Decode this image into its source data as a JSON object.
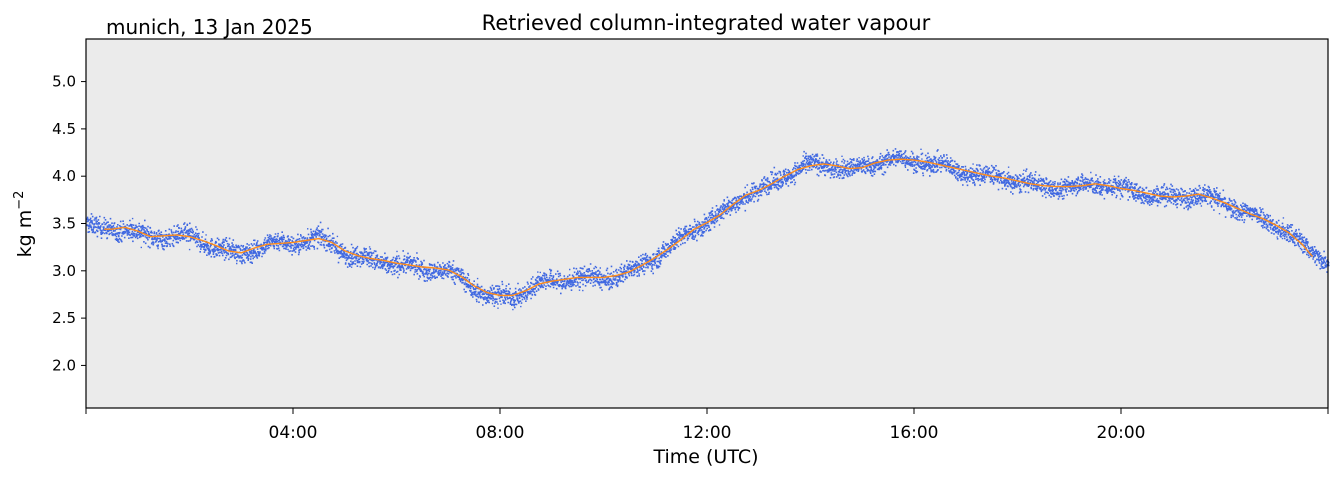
{
  "chart_data": {
    "type": "scatter",
    "title": "Retrieved column-integrated water vapour",
    "subtitle": "munich, 13 Jan 2025",
    "xlabel": "Time (UTC)",
    "ylabel_main": "kg m",
    "ylabel_sup": "−2",
    "x_unit": "hours UTC",
    "xlim": [
      0,
      24
    ],
    "ylim": [
      1.55,
      5.45
    ],
    "x_ticks": [
      0,
      4,
      8,
      12,
      16,
      20,
      24
    ],
    "x_tick_labels": [
      "",
      "04:00",
      "08:00",
      "12:00",
      "16:00",
      "20:00",
      ""
    ],
    "y_ticks": [
      2.0,
      2.5,
      3.0,
      3.5,
      4.0,
      4.5,
      5.0
    ],
    "y_tick_labels": [
      "2.0",
      "2.5",
      "3.0",
      "3.5",
      "4.0",
      "4.5",
      "5.0"
    ],
    "grid": false,
    "legend": "none",
    "colors": {
      "plot_background": "#ebebeb",
      "scatter": "#4169e1",
      "smoothed_line": "#ff8c1a"
    },
    "series": [
      {
        "kind": "scatter",
        "x": [
          0.0,
          0.25,
          0.5,
          0.75,
          1.0,
          1.25,
          1.5,
          1.75,
          2.0,
          2.25,
          2.5,
          2.75,
          3.0,
          3.25,
          3.5,
          3.75,
          4.0,
          4.25,
          4.5,
          4.75,
          5.0,
          5.25,
          5.5,
          5.75,
          6.0,
          6.25,
          6.5,
          6.75,
          7.0,
          7.25,
          7.5,
          7.75,
          8.0,
          8.25,
          8.5,
          8.75,
          9.0,
          9.25,
          9.5,
          9.75,
          10.0,
          10.25,
          10.5,
          10.75,
          11.0,
          11.25,
          11.5,
          11.75,
          12.0,
          12.25,
          12.5,
          12.75,
          13.0,
          13.25,
          13.5,
          13.75,
          14.0,
          14.25,
          14.5,
          14.75,
          15.0,
          15.25,
          15.5,
          15.75,
          16.0,
          16.25,
          16.5,
          16.75,
          17.0,
          17.25,
          17.5,
          17.75,
          18.0,
          18.25,
          18.5,
          18.75,
          19.0,
          19.25,
          19.5,
          19.75,
          20.0,
          20.25,
          20.5,
          20.75,
          21.0,
          21.25,
          21.5,
          21.75,
          22.0,
          22.25,
          22.5,
          22.75,
          23.0,
          23.25,
          23.5,
          23.75,
          24.0
        ],
        "y": [
          3.5,
          3.44,
          3.45,
          3.46,
          3.4,
          3.36,
          3.37,
          3.38,
          3.36,
          3.31,
          3.26,
          3.2,
          3.18,
          3.25,
          3.29,
          3.3,
          3.3,
          3.33,
          3.35,
          3.28,
          3.2,
          3.15,
          3.12,
          3.1,
          3.07,
          3.05,
          3.03,
          3.02,
          3.0,
          2.92,
          2.82,
          2.75,
          2.73,
          2.74,
          2.8,
          2.87,
          2.9,
          2.91,
          2.93,
          2.93,
          2.92,
          2.95,
          3.0,
          3.08,
          3.16,
          3.25,
          3.35,
          3.46,
          3.52,
          3.6,
          3.72,
          3.82,
          3.85,
          3.93,
          4.02,
          4.08,
          4.12,
          4.13,
          4.1,
          4.07,
          4.1,
          4.15,
          4.18,
          4.18,
          4.17,
          4.15,
          4.12,
          4.09,
          4.05,
          4.02,
          4.0,
          3.98,
          3.95,
          3.92,
          3.9,
          3.89,
          3.89,
          3.91,
          3.93,
          3.9,
          3.87,
          3.85,
          3.82,
          3.79,
          3.78,
          3.8,
          3.82,
          3.77,
          3.72,
          3.66,
          3.6,
          3.55,
          3.48,
          3.4,
          3.27,
          3.18,
          3.12
        ],
        "spread": 0.09
      },
      {
        "kind": "line",
        "x": [
          0.35,
          0.5,
          0.75,
          1.0,
          1.25,
          1.5,
          1.75,
          2.0,
          2.25,
          2.5,
          2.75,
          3.0,
          3.25,
          3.5,
          3.75,
          4.0,
          4.25,
          4.5,
          4.75,
          5.0,
          5.25,
          5.5,
          5.75,
          6.0,
          6.25,
          6.5,
          6.75,
          7.0,
          7.25,
          7.5,
          7.75,
          8.0,
          8.25,
          8.5,
          8.75,
          9.0,
          9.25,
          9.5,
          9.75,
          10.0,
          10.25,
          10.5,
          10.75,
          11.0,
          11.25,
          11.5,
          11.75,
          12.0,
          12.25,
          12.5,
          12.75,
          13.0,
          13.25,
          13.5,
          13.75,
          14.0,
          14.25,
          14.5,
          14.75,
          15.0,
          15.25,
          15.5,
          15.75,
          16.0,
          16.25,
          16.5,
          16.75,
          17.0,
          17.25,
          17.5,
          17.75,
          18.0,
          18.25,
          18.5,
          18.75,
          19.0,
          19.25,
          19.5,
          19.75,
          20.0,
          20.25,
          20.5,
          20.75,
          21.0,
          21.25,
          21.5,
          21.75,
          22.0,
          22.25,
          22.5,
          22.75,
          23.0,
          23.25,
          23.5,
          23.7
        ],
        "y": [
          3.44,
          3.44,
          3.46,
          3.42,
          3.36,
          3.37,
          3.38,
          3.36,
          3.32,
          3.27,
          3.21,
          3.19,
          3.24,
          3.28,
          3.29,
          3.3,
          3.32,
          3.34,
          3.3,
          3.21,
          3.16,
          3.13,
          3.11,
          3.08,
          3.06,
          3.04,
          3.03,
          3.01,
          2.94,
          2.84,
          2.77,
          2.74,
          2.74,
          2.79,
          2.86,
          2.89,
          2.91,
          2.93,
          2.93,
          2.93,
          2.95,
          2.99,
          3.06,
          3.14,
          3.23,
          3.33,
          3.44,
          3.51,
          3.59,
          3.7,
          3.8,
          3.85,
          3.92,
          4.0,
          4.07,
          4.11,
          4.13,
          4.11,
          4.08,
          4.09,
          4.14,
          4.17,
          4.18,
          4.17,
          4.15,
          4.12,
          4.09,
          4.06,
          4.03,
          4.0,
          3.98,
          3.95,
          3.92,
          3.9,
          3.89,
          3.89,
          3.9,
          3.92,
          3.9,
          3.87,
          3.85,
          3.82,
          3.79,
          3.78,
          3.79,
          3.81,
          3.77,
          3.72,
          3.66,
          3.6,
          3.55,
          3.48,
          3.4,
          3.28,
          3.15
        ]
      }
    ]
  }
}
